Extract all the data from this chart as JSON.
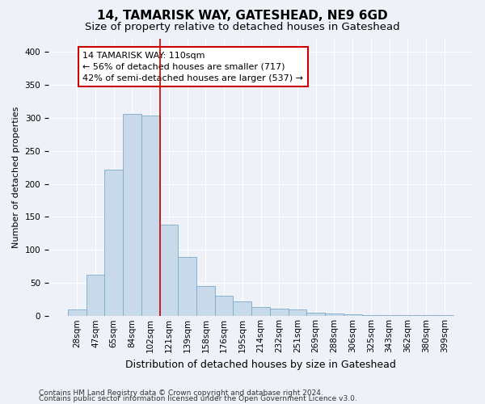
{
  "title": "14, TAMARISK WAY, GATESHEAD, NE9 6GD",
  "subtitle": "Size of property relative to detached houses in Gateshead",
  "xlabel": "Distribution of detached houses by size in Gateshead",
  "ylabel": "Number of detached properties",
  "categories": [
    "28sqm",
    "47sqm",
    "65sqm",
    "84sqm",
    "102sqm",
    "121sqm",
    "139sqm",
    "158sqm",
    "176sqm",
    "195sqm",
    "214sqm",
    "232sqm",
    "251sqm",
    "269sqm",
    "288sqm",
    "306sqm",
    "325sqm",
    "343sqm",
    "362sqm",
    "380sqm",
    "399sqm"
  ],
  "values": [
    10,
    63,
    221,
    306,
    303,
    138,
    89,
    46,
    31,
    22,
    14,
    11,
    10,
    5,
    4,
    3,
    2,
    2,
    1,
    2,
    2
  ],
  "bar_color": "#c8d9ea",
  "bar_edge_color": "#7aaac8",
  "property_line_x": 4.5,
  "property_line_color": "#cc0000",
  "annotation_line1": "14 TAMARISK WAY: 110sqm",
  "annotation_line2": "← 56% of detached houses are smaller (717)",
  "annotation_line3": "42% of semi-detached houses are larger (537) →",
  "annotation_box_color": "#ffffff",
  "annotation_box_edge": "#cc0000",
  "ylim": [
    0,
    420
  ],
  "yticks": [
    0,
    50,
    100,
    150,
    200,
    250,
    300,
    350,
    400
  ],
  "footer_line1": "Contains HM Land Registry data © Crown copyright and database right 2024.",
  "footer_line2": "Contains public sector information licensed under the Open Government Licence v3.0.",
  "title_fontsize": 11,
  "subtitle_fontsize": 9.5,
  "xlabel_fontsize": 9,
  "ylabel_fontsize": 8,
  "tick_fontsize": 7.5,
  "annotation_fontsize": 8,
  "footer_fontsize": 6.5,
  "background_color": "#eef2f8",
  "plot_bg_color": "#eef2f8"
}
